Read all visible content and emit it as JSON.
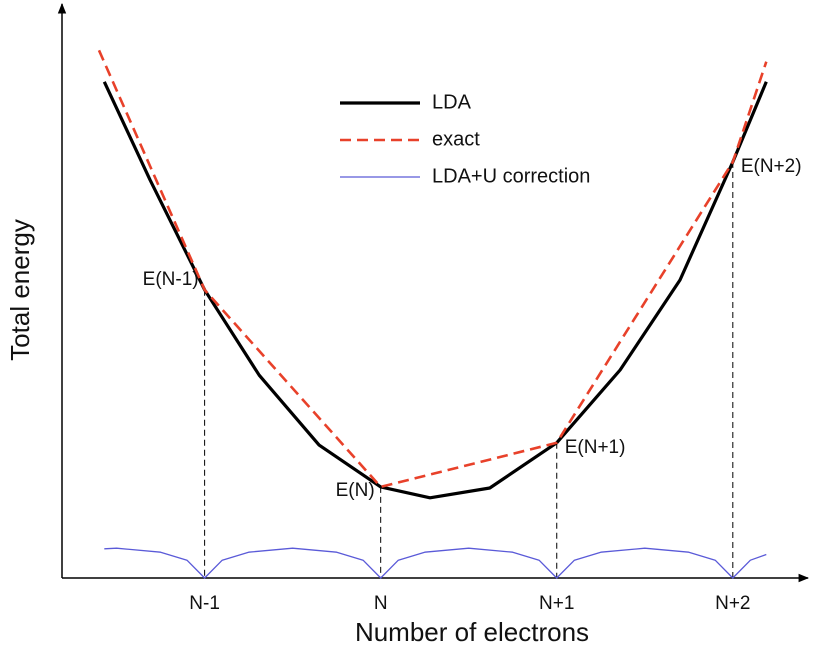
{
  "chart_data": {
    "type": "line",
    "xlabel": "Number of electrons",
    "ylabel": "Total energy",
    "xlim": [
      0.19,
      4.41
    ],
    "ylim": [
      0,
      10
    ],
    "xticks": [
      {
        "value": 1,
        "label": "N-1"
      },
      {
        "value": 2,
        "label": "N"
      },
      {
        "value": 3,
        "label": "N+1"
      },
      {
        "value": 4,
        "label": "N+2"
      }
    ],
    "legend": "upper center",
    "series": [
      {
        "name": "LDA",
        "color": "#000000",
        "linestyle": "solid",
        "x": [
          0.43,
          0.69,
          1.0,
          1.31,
          1.65,
          2.0,
          2.28,
          2.62,
          3.0,
          3.36,
          3.7,
          4.0,
          4.19
        ],
        "values": [
          8.66,
          6.95,
          5.03,
          3.54,
          2.32,
          1.59,
          1.4,
          1.57,
          2.36,
          3.63,
          5.2,
          7.26,
          8.66
        ]
      },
      {
        "name": "exact",
        "color": "#e8412a",
        "linestyle": "dashed",
        "x": [
          0.4,
          1.0,
          2.0,
          3.0,
          4.0,
          4.19
        ],
        "values": [
          9.21,
          5.03,
          1.59,
          2.36,
          7.26,
          9.01
        ]
      },
      {
        "name": "LDA+U correction",
        "color": "#5a5ad8",
        "linestyle": "solid",
        "x": [
          0.43,
          0.5,
          0.75,
          0.9,
          1.0,
          1.1,
          1.25,
          1.5,
          1.75,
          1.9,
          2.0,
          2.1,
          2.25,
          2.5,
          2.75,
          2.9,
          3.0,
          3.1,
          3.25,
          3.5,
          3.75,
          3.9,
          4.0,
          4.1,
          4.19
        ],
        "values": [
          0.51,
          0.52,
          0.45,
          0.31,
          0,
          0.31,
          0.45,
          0.52,
          0.45,
          0.31,
          0,
          0.31,
          0.45,
          0.52,
          0.45,
          0.31,
          0,
          0.31,
          0.45,
          0.52,
          0.45,
          0.31,
          0,
          0.31,
          0.41
        ]
      }
    ],
    "annotations": [
      {
        "text": "E(N-1)",
        "x": 1.0,
        "y": 5.03
      },
      {
        "text": "E(N)",
        "x": 2.0,
        "y": 1.59
      },
      {
        "text": "E(N+1)",
        "x": 3.0,
        "y": 2.36
      },
      {
        "text": "E(N+2)",
        "x": 4.0,
        "y": 7.26
      }
    ]
  }
}
